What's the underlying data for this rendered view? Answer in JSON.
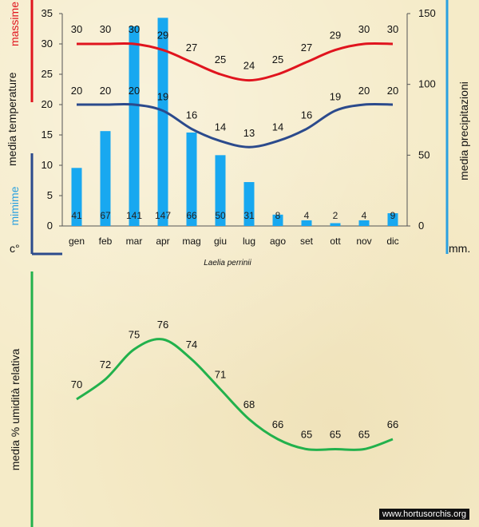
{
  "labels": {
    "max_label": "massime",
    "mean_temp_label": "media temperature",
    "min_label": "mimime",
    "temp_unit": "c°",
    "precip_label": "media precipitazioni",
    "precip_unit": "mm.",
    "species": "Laelia perrinii",
    "humidity_label": "media % umidità relativa",
    "watermark": "www.hortusorchis.org"
  },
  "colors": {
    "max_line": "#e0141e",
    "min_line": "#2b4a8c",
    "bars": "#18a8f0",
    "humidity_line": "#22b14c",
    "max_axis_marker": "#e0141e",
    "min_axis_marker": "#2b4a8c",
    "precip_axis_marker": "#2aa0e0",
    "humidity_axis_marker": "#22b14c"
  },
  "chart_data": [
    {
      "type": "bar+line",
      "title": "Laelia perrinii",
      "categories": [
        "gen",
        "feb",
        "mar",
        "apr",
        "mag",
        "giu",
        "lug",
        "ago",
        "set",
        "ott",
        "nov",
        "dic"
      ],
      "series": [
        {
          "name": "massime",
          "axis": "left",
          "type": "line",
          "values": [
            30,
            30,
            30,
            29,
            27,
            25,
            24,
            25,
            27,
            29,
            30,
            30
          ]
        },
        {
          "name": "mimime",
          "axis": "left",
          "type": "line",
          "values": [
            20,
            20,
            20,
            19,
            16,
            14,
            13,
            14,
            16,
            19,
            20,
            20
          ]
        },
        {
          "name": "media precipitazioni",
          "axis": "right",
          "type": "bar",
          "values": [
            41,
            67,
            141,
            147,
            66,
            50,
            31,
            8,
            4,
            2,
            4,
            9
          ]
        }
      ],
      "left_axis": {
        "label": "media temperature",
        "unit": "c°",
        "ylim": [
          0,
          35
        ],
        "ticks": [
          0,
          5,
          10,
          15,
          20,
          25,
          30,
          35
        ]
      },
      "right_axis": {
        "label": "media precipitazioni",
        "unit": "mm.",
        "ylim": [
          0,
          150
        ],
        "ticks": [
          0,
          50,
          100,
          150
        ]
      }
    },
    {
      "type": "line",
      "title": "",
      "ylabel": "media % umidità relativa",
      "categories": [
        "gen",
        "feb",
        "mar",
        "apr",
        "mag",
        "giu",
        "lug",
        "ago",
        "set",
        "ott",
        "nov",
        "dic"
      ],
      "values": [
        70,
        72,
        75,
        76,
        74,
        71,
        68,
        66,
        65,
        65,
        65,
        66
      ],
      "ylim": [
        62,
        78
      ]
    }
  ]
}
